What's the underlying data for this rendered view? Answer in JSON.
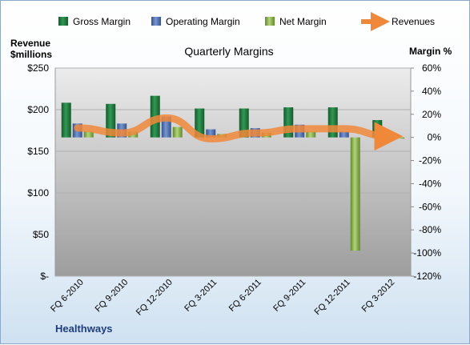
{
  "chart_data": {
    "type": "bar",
    "title": "Quarterly Margins",
    "company": "Healthways",
    "y_left_label_line1": "Revenue",
    "y_left_label_line2": "$millions",
    "y_right_label": "Margin %",
    "y_left_ticks": [
      "$250",
      "$200",
      "$150",
      "$100",
      "$50",
      "$-"
    ],
    "y_right_ticks": [
      "60%",
      "40%",
      "20%",
      "0%",
      "-20%",
      "-40%",
      "-60%",
      "-80%",
      "-100%",
      "-120%"
    ],
    "ylim_left": [
      0,
      250
    ],
    "ylim_right": [
      -120,
      60
    ],
    "categories": [
      "FQ 6-2010",
      "FQ 9-2010",
      "FQ 12-2010",
      "FQ 3-2011",
      "FQ 6-2011",
      "FQ 9-2011",
      "FQ 12-2011",
      "FQ 3-2012"
    ],
    "series": [
      {
        "name": "Gross Margin",
        "kind": "bar",
        "axis": "right",
        "color": "#1e7a3c",
        "values": [
          30,
          29,
          36,
          25,
          25,
          26,
          26,
          15
        ]
      },
      {
        "name": "Operating Margin",
        "kind": "bar",
        "axis": "right",
        "color": "#4f72b8",
        "values": [
          12,
          12,
          18,
          7,
          8,
          11,
          5,
          null
        ]
      },
      {
        "name": "Net Margin",
        "kind": "bar",
        "axis": "right",
        "color": "#8fb84a",
        "values": [
          5,
          5,
          9,
          3,
          4,
          5,
          -98,
          -1
        ]
      },
      {
        "name": "Revenues",
        "kind": "line",
        "axis": "left",
        "color": "#f0883a",
        "values": [
          178,
          172,
          190,
          165,
          172,
          177,
          177,
          168
        ]
      }
    ],
    "grid": true,
    "legend": "top"
  }
}
